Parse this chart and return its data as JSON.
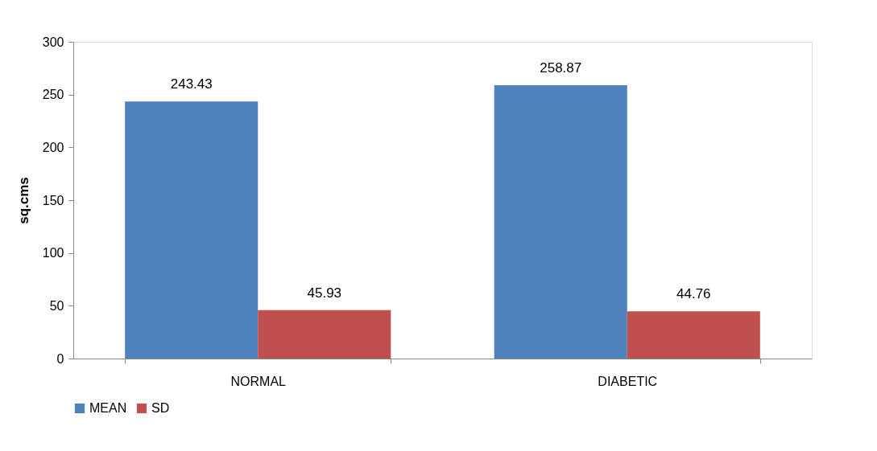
{
  "chart_data": {
    "type": "bar",
    "ylabel": "sq.cms",
    "categories": [
      "NORMAL",
      "DIABETIC"
    ],
    "series": [
      {
        "name": "MEAN",
        "color": "#4f81bd",
        "values": [
          243.43,
          258.87
        ]
      },
      {
        "name": "SD",
        "color": "#c0504d",
        "values": [
          45.93,
          44.76
        ]
      }
    ],
    "ylim": [
      0,
      300
    ],
    "yticks": [
      0,
      50,
      100,
      150,
      200,
      250,
      300
    ],
    "grid": false,
    "legend": "bottom",
    "data_labels": true
  }
}
